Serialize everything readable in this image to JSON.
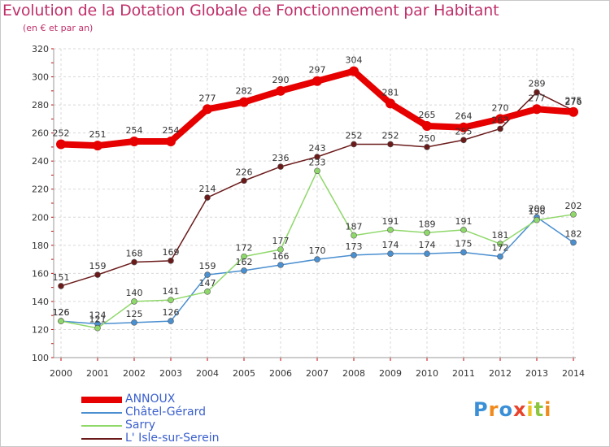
{
  "header": {
    "title": "Evolution de la Dotation Globale de Fonctionnement par Habitant",
    "subtitle": "(en € et par an)"
  },
  "logo": {
    "text": "Proxiti",
    "letters": [
      "P",
      "r",
      "o",
      "x",
      "i",
      "t",
      "i"
    ],
    "colors": [
      "#3a8fd6",
      "#f08a1c",
      "#3a8fd6",
      "#e8432a",
      "#f0c020",
      "#8cc63f",
      "#f08a1c"
    ]
  },
  "chart_data": {
    "type": "line",
    "x": [
      "2000",
      "2001",
      "2002",
      "2003",
      "2004",
      "2005",
      "2006",
      "2007",
      "2008",
      "2009",
      "2010",
      "2011",
      "2012",
      "2013",
      "2014"
    ],
    "ylim": [
      100,
      320
    ],
    "yticks": [
      "100",
      "120",
      "140",
      "160",
      "180",
      "200",
      "220",
      "240",
      "260",
      "280",
      "300",
      "320"
    ],
    "grid": true,
    "legend_position": "bottom-left",
    "series": [
      {
        "name": "ANNOUX",
        "color": "#e60000",
        "values": [
          252,
          251,
          254,
          254,
          277,
          282,
          290,
          297,
          304,
          281,
          265,
          264,
          270,
          277,
          275
        ],
        "labels": [
          "252",
          "251",
          "254",
          "254",
          "277",
          "282",
          "290",
          "297",
          "304",
          "281",
          "265",
          "264",
          "270",
          "277",
          "275"
        ]
      },
      {
        "name": "Châtel-Gérard",
        "color": "#4a8fd0",
        "values": [
          126,
          124,
          125,
          126,
          159,
          162,
          166,
          170,
          173,
          174,
          174,
          175,
          172,
          200,
          182
        ],
        "labels": [
          "126",
          "124",
          "125",
          "126",
          "159",
          "162",
          "166",
          "170",
          "173",
          "174",
          "174",
          "175",
          "172",
          "200",
          "182"
        ]
      },
      {
        "name": "Sarry",
        "color": "#8fd86a",
        "values": [
          126,
          121,
          140,
          141,
          147,
          172,
          177,
          233,
          187,
          191,
          189,
          191,
          181,
          198,
          202
        ],
        "labels": [
          "126",
          "121",
          "140",
          "141",
          "147",
          "172",
          "177",
          "233",
          "187",
          "191",
          "189",
          "191",
          "181",
          "198",
          "202"
        ]
      },
      {
        "name": "L' Isle-sur-Serein",
        "color": "#6b1a1a",
        "values": [
          151,
          159,
          168,
          169,
          214,
          226,
          236,
          243,
          252,
          252,
          250,
          255,
          263,
          289,
          276
        ],
        "labels": [
          "151",
          "159",
          "168",
          "169",
          "214",
          "226",
          "236",
          "243",
          "252",
          "252",
          "250",
          "255",
          "263",
          "289",
          "276"
        ]
      }
    ]
  }
}
